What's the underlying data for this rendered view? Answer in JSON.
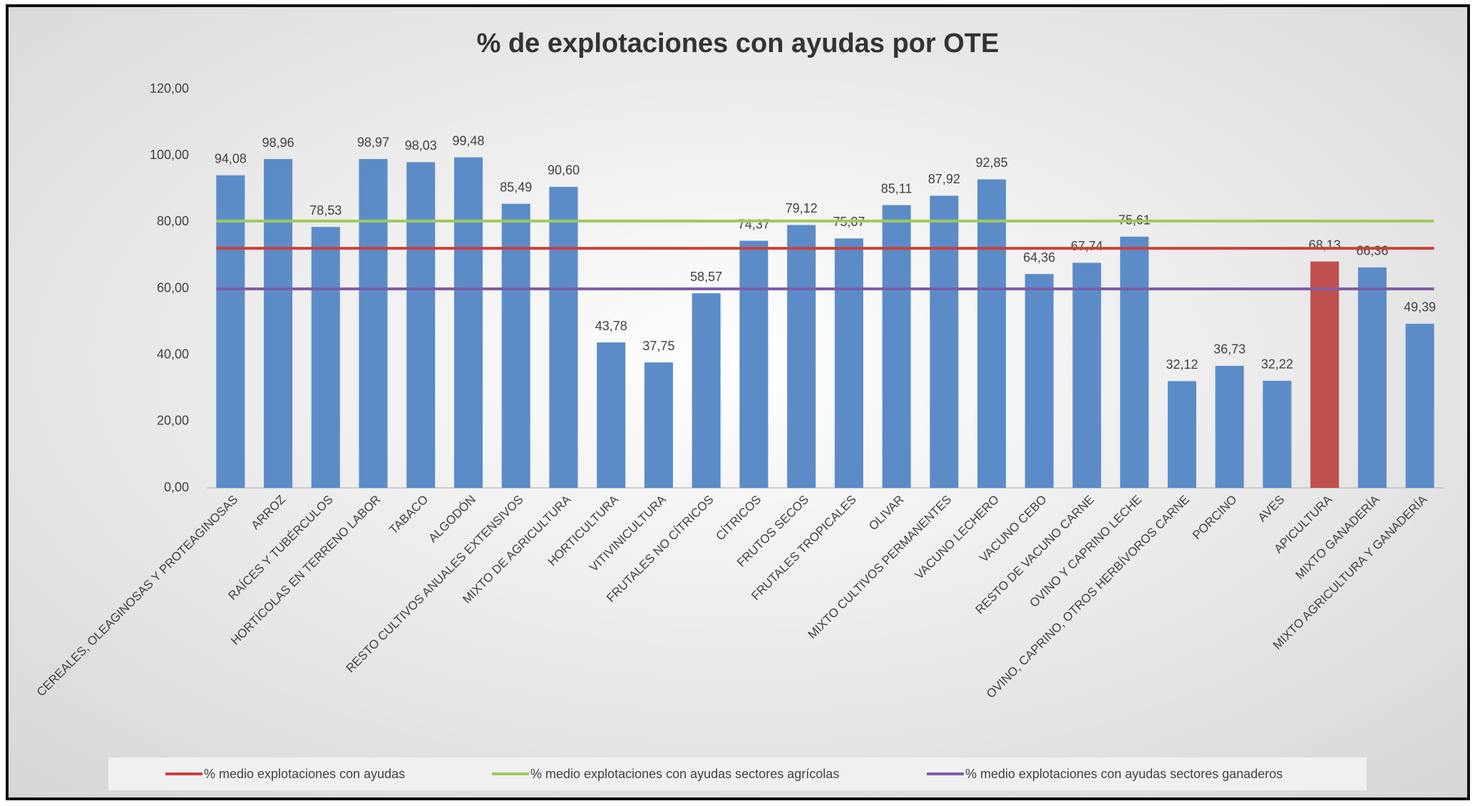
{
  "chart_data": {
    "type": "bar",
    "title": "% de explotaciones con ayudas por OTE",
    "categories": [
      "CEREALES, OLEAGINOSAS Y PROTEAGINOSAS",
      "ARROZ",
      "RAÍCES Y TUBÉRCULOS",
      "HORTÍCOLAS EN TERRENO LABOR",
      "TABACO",
      "ALGODÓN",
      "RESTO CULTIVOS ANUALES EXTENSIVOS",
      "MIXTO DE AGRICULTURA",
      "HORTICULTURA",
      "VITIVINICULTURA",
      "FRUTALES NO CÍTRICOS",
      "CÍTRICOS",
      "FRUTOS SECOS",
      "FRUTALES TROPICALES",
      "OLIVAR",
      "MIXTO CULTIVOS PERMANENTES",
      "VACUNO LECHERO",
      "VACUNO CEBO",
      "RESTO DE VACUNO CARNE",
      "OVINO Y CAPRINO LECHE",
      "OVINO, CAPRINO, OTROS HERBÍVOROS CARNE",
      "PORCINO",
      "AVES",
      "APICULTURA",
      "MIXTO GANADERÍA",
      "MIXTO AGRICULTURA Y GANADERÍA"
    ],
    "values": [
      94.08,
      98.96,
      78.53,
      98.97,
      98.03,
      99.48,
      85.49,
      90.6,
      43.78,
      37.75,
      58.57,
      74.37,
      79.12,
      75.07,
      85.11,
      87.92,
      92.85,
      64.36,
      67.74,
      75.61,
      32.12,
      36.73,
      32.22,
      68.13,
      66.36,
      49.39
    ],
    "value_labels": [
      "94,08",
      "98,96",
      "78,53",
      "98,97",
      "98,03",
      "99,48",
      "85,49",
      "90,60",
      "43,78",
      "37,75",
      "58,57",
      "74,37",
      "79,12",
      "75,07",
      "85,11",
      "87,92",
      "92,85",
      "64,36",
      "67,74",
      "75,61",
      "32,12",
      "36,73",
      "32,22",
      "68,13",
      "66,36",
      "49,39"
    ],
    "colors": [
      "#5b8cc8",
      "#5b8cc8",
      "#5b8cc8",
      "#5b8cc8",
      "#5b8cc8",
      "#5b8cc8",
      "#5b8cc8",
      "#5b8cc8",
      "#5b8cc8",
      "#5b8cc8",
      "#5b8cc8",
      "#5b8cc8",
      "#5b8cc8",
      "#5b8cc8",
      "#5b8cc8",
      "#5b8cc8",
      "#5b8cc8",
      "#5b8cc8",
      "#5b8cc8",
      "#5b8cc8",
      "#5b8cc8",
      "#5b8cc8",
      "#5b8cc8",
      "#c0504d",
      "#5b8cc8",
      "#5b8cc8"
    ],
    "reference_lines": [
      {
        "name": "% medio explotaciones con ayudas",
        "color": "#c9413e",
        "value": 72.1
      },
      {
        "name": "% medio explotaciones con ayudas sectores agrícolas",
        "color": "#9ccb5c",
        "value": 80.3
      },
      {
        "name": "% medio explotaciones con ayudas sectores ganaderos",
        "color": "#7e5ca8",
        "value": 59.9
      }
    ],
    "ylim": [
      0,
      120
    ],
    "yticks": [
      {
        "value": 0,
        "label": "0,00"
      },
      {
        "value": 20,
        "label": "20,00"
      },
      {
        "value": 40,
        "label": "40,00"
      },
      {
        "value": 60,
        "label": "60,00"
      },
      {
        "value": 80,
        "label": "80,00"
      },
      {
        "value": 100,
        "label": "100,00"
      },
      {
        "value": 120,
        "label": "120,00"
      }
    ],
    "grid": false
  }
}
